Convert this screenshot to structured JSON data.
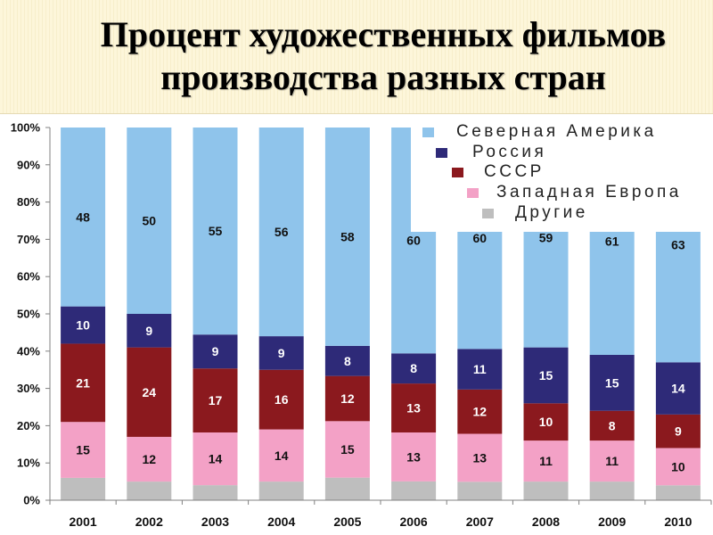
{
  "chart_data": {
    "type": "bar",
    "stacked": true,
    "normalized_percent": true,
    "title": [
      "Процент художественных фильмов",
      "производства разных стран"
    ],
    "categories": [
      "2001",
      "2002",
      "2003",
      "2004",
      "2005",
      "2006",
      "2007",
      "2008",
      "2009",
      "2010"
    ],
    "series": [
      {
        "name": "Другие",
        "color": "#bebebe",
        "label_color": "#111111",
        "show_labels": false,
        "values": [
          6,
          5,
          4,
          5,
          6,
          5,
          5,
          5,
          5,
          4
        ]
      },
      {
        "name": "Западная Европа",
        "color": "#f3a1c6",
        "label_color": "#111111",
        "show_labels": true,
        "values": [
          15,
          12,
          14,
          14,
          15,
          13,
          13,
          11,
          11,
          10
        ]
      },
      {
        "name": "СССР",
        "color": "#8b191e",
        "label_color": "#ffffff",
        "show_labels": true,
        "values": [
          21,
          24,
          17,
          16,
          12,
          13,
          12,
          10,
          8,
          9
        ]
      },
      {
        "name": "Россия",
        "color": "#2e2a78",
        "label_color": "#ffffff",
        "show_labels": true,
        "values": [
          10,
          9,
          9,
          9,
          8,
          8,
          11,
          15,
          15,
          14
        ]
      },
      {
        "name": "Северная Америка",
        "color": "#8fc4eb",
        "label_color": "#111111",
        "show_labels": true,
        "values": [
          48,
          50,
          55,
          56,
          58,
          60,
          60,
          59,
          61,
          63
        ]
      }
    ],
    "yticks": [
      "0%",
      "10%",
      "20%",
      "30%",
      "40%",
      "50%",
      "60%",
      "70%",
      "80%",
      "90%",
      "100%"
    ],
    "ylim": [
      0,
      100
    ],
    "grid": false,
    "legend": "top-right"
  }
}
